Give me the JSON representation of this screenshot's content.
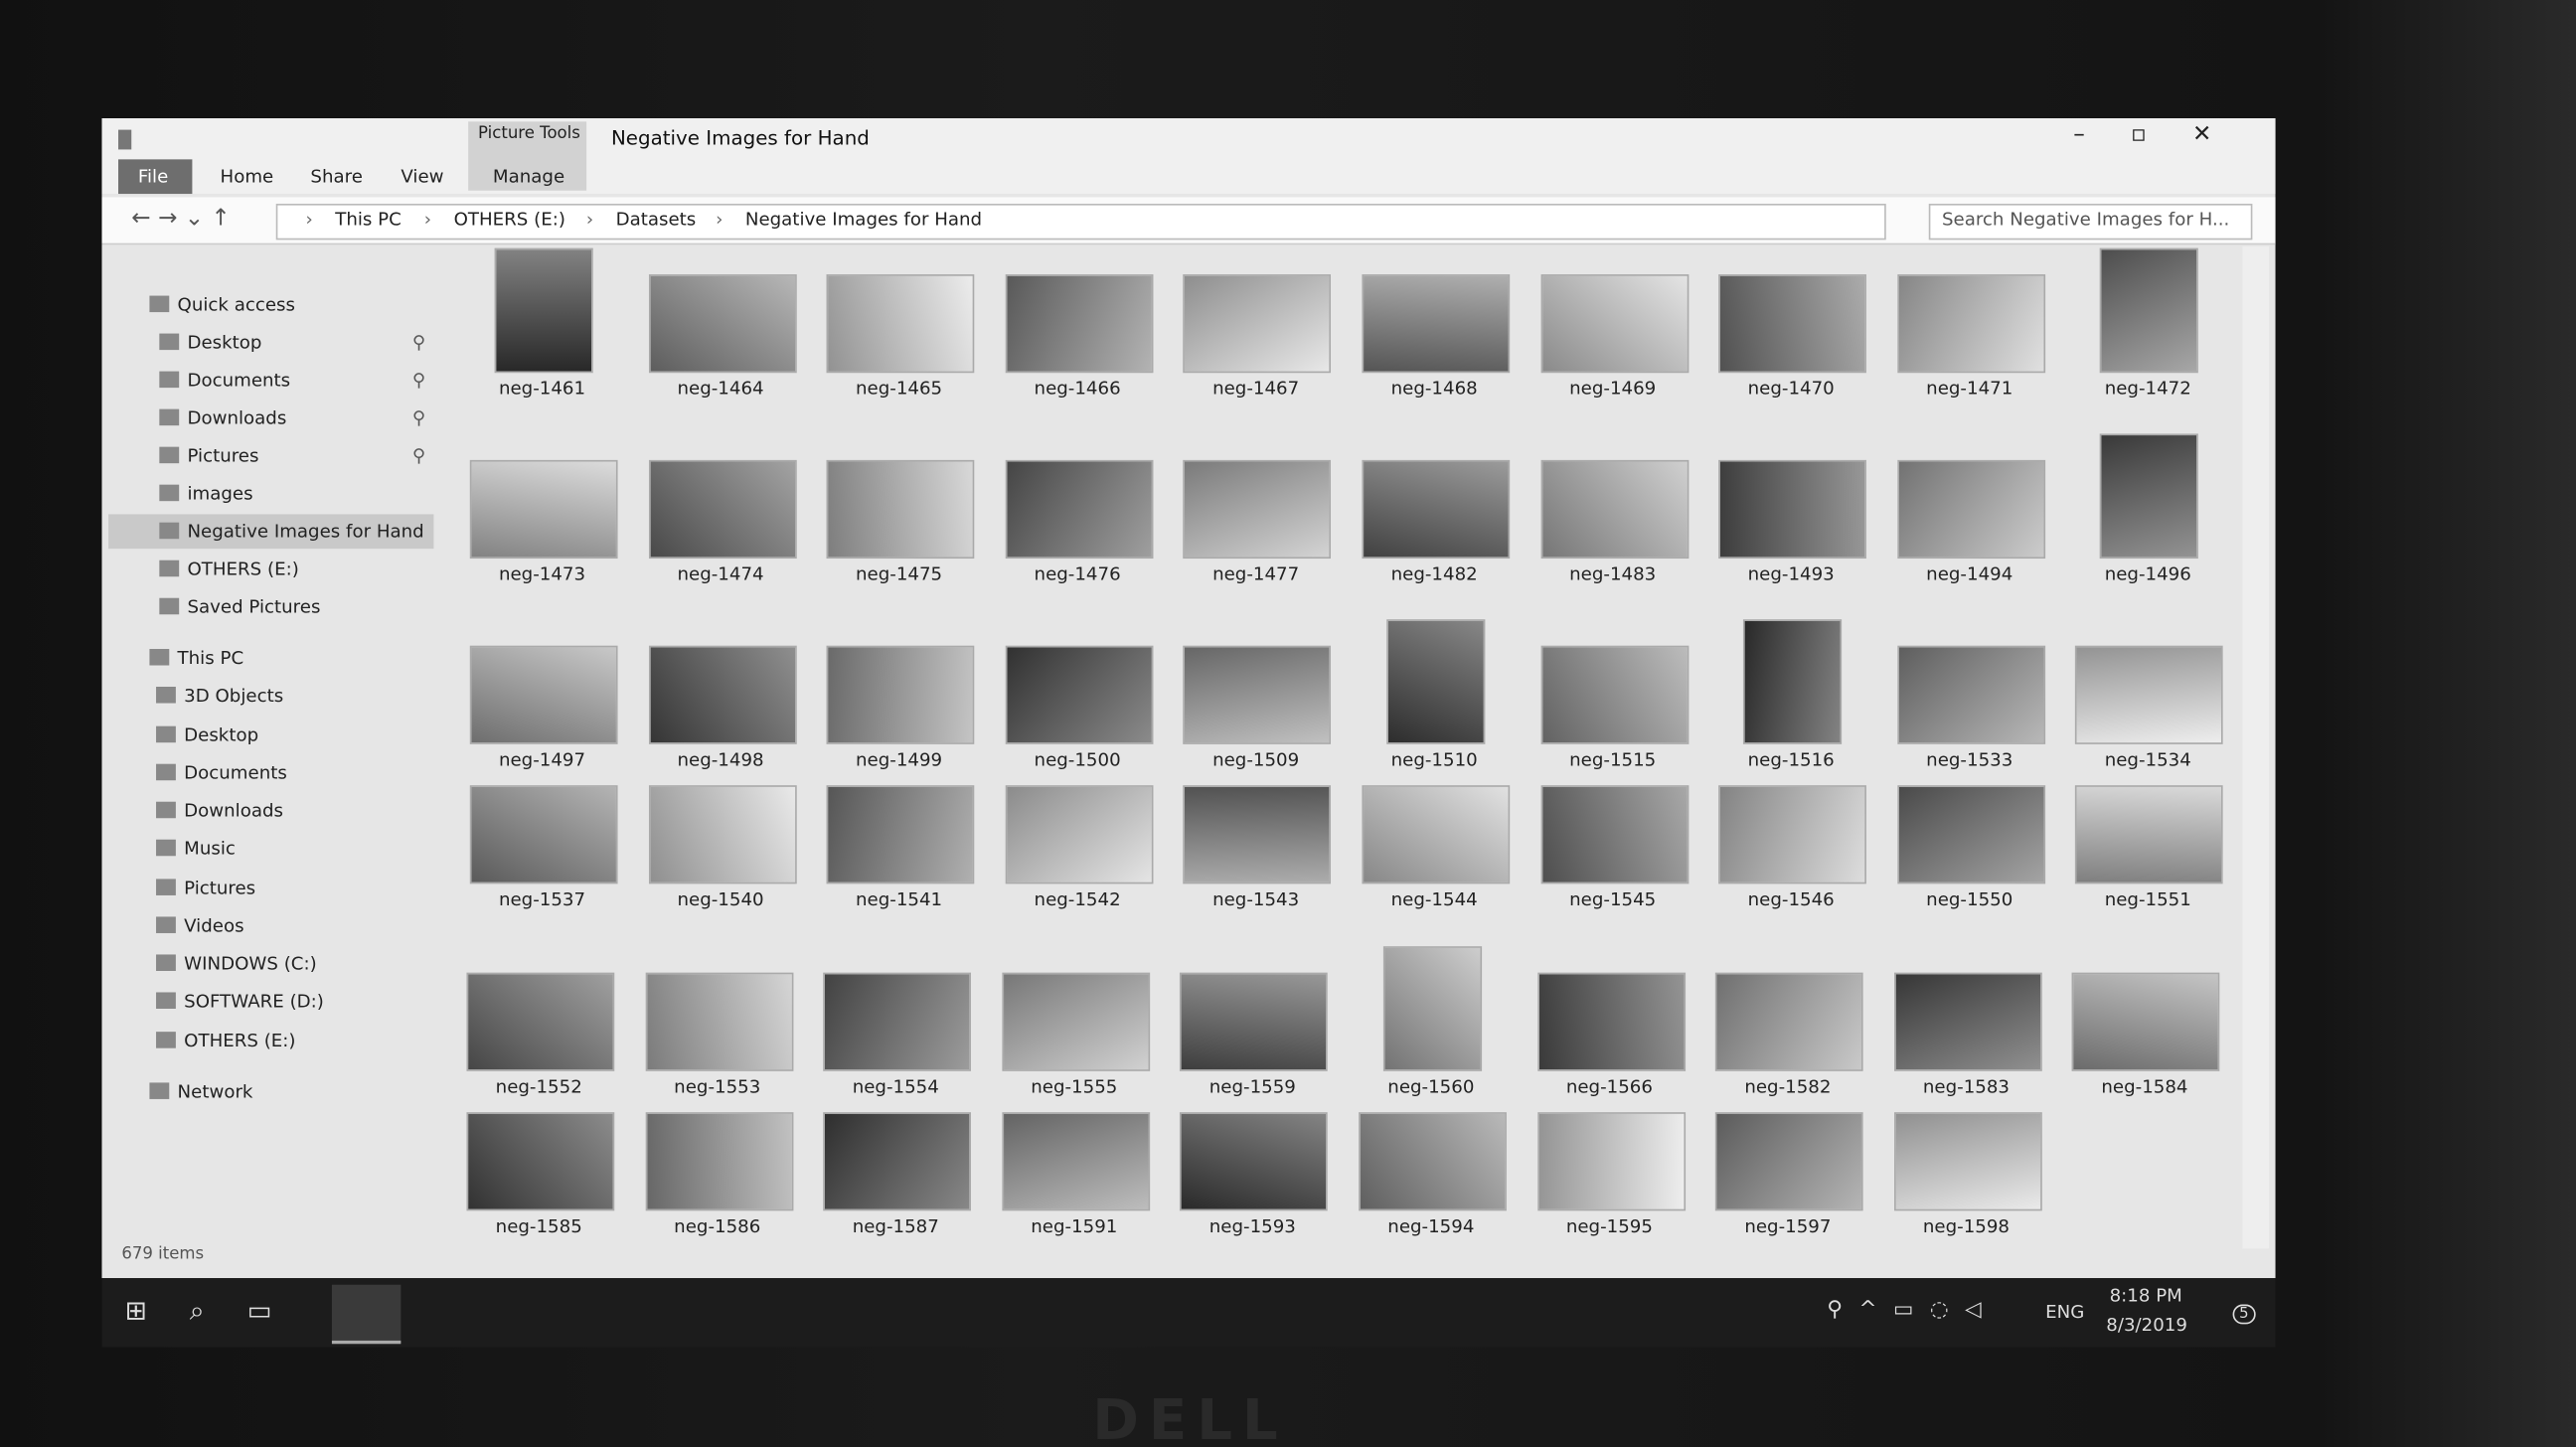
{
  "window": {
    "title": "Negative Images for Hand",
    "context_tab": "Picture Tools",
    "tabs": [
      "File",
      "Home",
      "Share",
      "View",
      "Manage"
    ],
    "breadcrumb": [
      "This PC",
      "OTHERS (E:)",
      "Datasets",
      "Negative Images for Hand"
    ],
    "search_placeholder": "Search Negative Images for H...",
    "status": "679 items"
  },
  "sidebar": [
    "Quick access",
    "Desktop",
    "Documents",
    "Downloads",
    "Pictures",
    "images",
    "Negative Images for Hand",
    "OTHERS (E:)",
    "Saved Pictures",
    "This PC",
    "3D Objects",
    "Desktop",
    "Documents",
    "Downloads",
    "Music",
    "Pictures",
    "Videos",
    "WINDOWS (C:)",
    "SOFTWARE (D:)",
    "OTHERS (E:)",
    "Network"
  ],
  "files": [
    "neg-1461",
    "neg-1464",
    "neg-1465",
    "neg-1466",
    "neg-1467",
    "neg-1468",
    "neg-1469",
    "neg-1470",
    "neg-1471",
    "neg-1472",
    "neg-1473",
    "neg-1474",
    "neg-1475",
    "neg-1476",
    "neg-1477",
    "neg-1482",
    "neg-1483",
    "neg-1493",
    "neg-1494",
    "neg-1496",
    "neg-1497",
    "neg-1498",
    "neg-1499",
    "neg-1500",
    "neg-1509",
    "neg-1510",
    "neg-1515",
    "neg-1516",
    "neg-1533",
    "neg-1534",
    "neg-1537",
    "neg-1540",
    "neg-1541",
    "neg-1542",
    "neg-1543",
    "neg-1544",
    "neg-1545",
    "neg-1546",
    "neg-1550",
    "neg-1551",
    "neg-1552",
    "neg-1553",
    "neg-1554",
    "neg-1555",
    "neg-1559",
    "neg-1560",
    "neg-1566",
    "neg-1582",
    "neg-1583",
    "neg-1584",
    "neg-1585",
    "neg-1586",
    "neg-1587",
    "neg-1591",
    "neg-1593",
    "neg-1594",
    "neg-1595",
    "neg-1597",
    "neg-1598"
  ],
  "taskbar": {
    "language": "ENG",
    "time": "8:18 PM",
    "date": "8/3/2019",
    "notifications": "5"
  },
  "bezel_logo": "DELL"
}
